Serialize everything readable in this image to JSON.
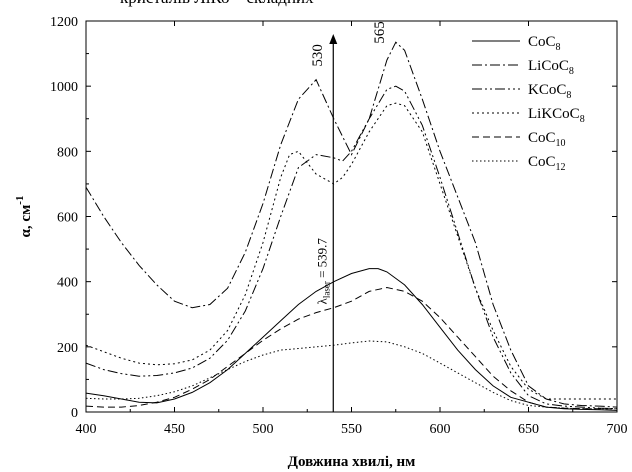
{
  "chart_data": {
    "type": "line",
    "title": "",
    "xlabel": "Довжина хвилі, нм",
    "ylabel": "α, см",
    "ylabel_sup": "-1",
    "xlim": [
      400,
      700
    ],
    "ylim": [
      0,
      1200
    ],
    "x_ticks": [
      400,
      450,
      500,
      550,
      600,
      650,
      700
    ],
    "y_ticks": [
      0,
      200,
      400,
      600,
      800,
      1000,
      1200
    ],
    "grid": false,
    "legend_position": "top-right",
    "series": [
      {
        "name": "CoC8",
        "name_main": "CoC",
        "name_sub": "8",
        "dash": "none",
        "x": [
          400,
          410,
          420,
          430,
          440,
          450,
          460,
          470,
          480,
          490,
          500,
          510,
          520,
          530,
          540,
          550,
          560,
          565,
          570,
          580,
          590,
          600,
          610,
          620,
          630,
          640,
          650,
          660,
          670,
          680,
          690,
          700
        ],
        "y": [
          58,
          50,
          40,
          30,
          28,
          40,
          60,
          90,
          130,
          180,
          230,
          280,
          330,
          370,
          400,
          425,
          440,
          440,
          430,
          390,
          330,
          260,
          190,
          130,
          80,
          45,
          30,
          15,
          10,
          8,
          7,
          5
        ]
      },
      {
        "name": "LiCoC8",
        "name_main": "LiCoC",
        "name_sub": "8",
        "dash": "10 3 2 3",
        "x": [
          400,
          410,
          420,
          430,
          440,
          450,
          460,
          470,
          480,
          490,
          500,
          510,
          520,
          530,
          540,
          550,
          560,
          570,
          575,
          580,
          590,
          600,
          610,
          620,
          630,
          640,
          650,
          660,
          670,
          680,
          690,
          700
        ],
        "y": [
          690,
          600,
          520,
          450,
          390,
          340,
          320,
          330,
          380,
          490,
          640,
          820,
          960,
          1020,
          900,
          790,
          900,
          1080,
          1135,
          1110,
          960,
          800,
          660,
          520,
          330,
          190,
          80,
          40,
          25,
          20,
          18,
          15
        ]
      },
      {
        "name": "KCoC8",
        "name_main": "KCoC",
        "name_sub": "8",
        "dash": "10 3 2 3 2 3",
        "x": [
          400,
          410,
          420,
          430,
          440,
          450,
          460,
          470,
          480,
          490,
          500,
          510,
          520,
          530,
          540,
          545,
          550,
          560,
          570,
          575,
          580,
          590,
          600,
          610,
          620,
          630,
          640,
          650,
          660,
          670,
          680,
          690,
          700
        ],
        "y": [
          150,
          130,
          118,
          110,
          112,
          120,
          135,
          165,
          220,
          310,
          440,
          600,
          750,
          790,
          780,
          770,
          800,
          900,
          990,
          1000,
          985,
          880,
          720,
          550,
          380,
          230,
          120,
          50,
          25,
          18,
          15,
          12,
          10
        ]
      },
      {
        "name": "LiKCoC8",
        "name_main": "LiKCoC",
        "name_sub": "8",
        "dash": "2 3",
        "x": [
          400,
          410,
          420,
          430,
          440,
          450,
          460,
          470,
          480,
          490,
          500,
          510,
          515,
          520,
          530,
          540,
          545,
          550,
          560,
          570,
          575,
          580,
          590,
          600,
          610,
          620,
          630,
          640,
          650,
          660,
          670,
          680,
          690,
          700
        ],
        "y": [
          205,
          185,
          165,
          150,
          145,
          148,
          160,
          190,
          250,
          360,
          520,
          720,
          790,
          800,
          730,
          700,
          720,
          760,
          860,
          940,
          948,
          940,
          860,
          700,
          540,
          380,
          250,
          140,
          70,
          40,
          40,
          40,
          40,
          40
        ]
      },
      {
        "name": "CoC10",
        "name_main": "CoC",
        "name_sub": "10",
        "dash": "7 4",
        "x": [
          400,
          410,
          420,
          430,
          440,
          450,
          460,
          470,
          480,
          490,
          500,
          510,
          520,
          530,
          540,
          550,
          560,
          570,
          580,
          590,
          600,
          610,
          620,
          630,
          640,
          650,
          660,
          670,
          680,
          690,
          700
        ],
        "y": [
          18,
          15,
          15,
          20,
          30,
          45,
          70,
          100,
          140,
          180,
          220,
          255,
          285,
          305,
          320,
          340,
          370,
          382,
          370,
          340,
          290,
          230,
          170,
          110,
          65,
          30,
          15,
          12,
          10,
          10,
          10
        ]
      },
      {
        "name": "CoC12",
        "name_main": "CoC",
        "name_sub": "12",
        "dash": "1.5 2.5",
        "x": [
          400,
          410,
          420,
          430,
          440,
          450,
          460,
          470,
          480,
          490,
          500,
          510,
          520,
          530,
          540,
          550,
          560,
          570,
          580,
          590,
          600,
          610,
          620,
          630,
          640,
          650,
          660,
          670,
          680,
          690,
          700
        ],
        "y": [
          42,
          40,
          40,
          42,
          50,
          62,
          80,
          105,
          130,
          155,
          175,
          190,
          195,
          200,
          205,
          212,
          218,
          215,
          200,
          180,
          150,
          120,
          90,
          60,
          35,
          20,
          15,
          12,
          10,
          10,
          10
        ]
      }
    ],
    "annotations": [
      {
        "text": "530",
        "x": 530,
        "y": 1060
      },
      {
        "text": "565",
        "x": 565,
        "y": 1130
      }
    ],
    "laser": {
      "x": 539.7,
      "y_from": 0,
      "y_to": 1160,
      "label_prefix": "λ",
      "label_sub": "laser",
      "label_rest": " = 539.7"
    }
  },
  "header_fragment": "кристалів ЛіКо—складних"
}
